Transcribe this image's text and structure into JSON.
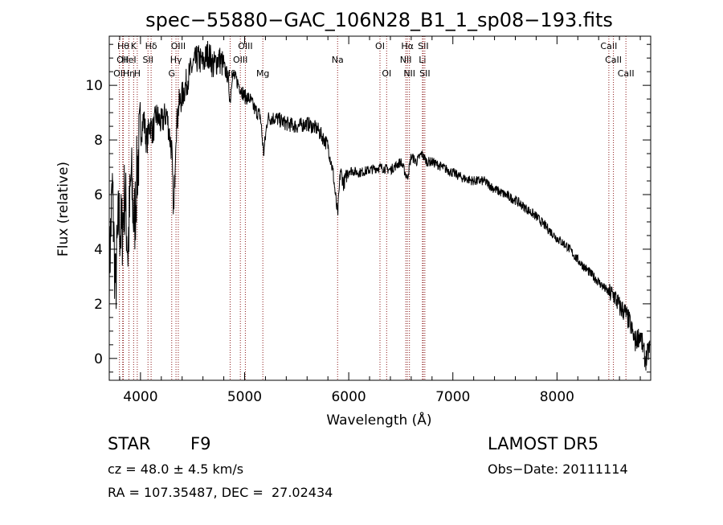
{
  "chart_data": {
    "type": "line",
    "title": "spec−55880−GAC_106N28_B1_1_sp08−193.fits",
    "xlabel": "Wavelength (Å)",
    "ylabel": "Flux (relative)",
    "xlim": [
      3700,
      8900
    ],
    "ylim": [
      -0.8,
      11.8
    ],
    "x_ticks": [
      4000,
      5000,
      6000,
      7000,
      8000
    ],
    "y_ticks": [
      0,
      2,
      4,
      6,
      8,
      10
    ],
    "grid": false,
    "series": [
      {
        "x": [
          3700,
          3730,
          3760,
          3790,
          3820,
          3850,
          3880,
          3910,
          3940,
          3970,
          4000,
          4030,
          4060,
          4090,
          4120,
          4150,
          4200,
          4250,
          4300,
          4320,
          4340,
          4370,
          4400,
          4450,
          4500,
          4550,
          4600,
          4650,
          4700,
          4750,
          4800,
          4840,
          4861,
          4880,
          4920,
          4960,
          5000,
          5050,
          5100,
          5150,
          5183,
          5220,
          5300,
          5400,
          5500,
          5600,
          5700,
          5800,
          5850,
          5893,
          5920,
          5950,
          6000,
          6100,
          6200,
          6300,
          6400,
          6500,
          6563,
          6600,
          6650,
          6700,
          6750,
          6800,
          6900,
          7000,
          7100,
          7200,
          7300,
          7400,
          7500,
          7600,
          7700,
          7800,
          7900,
          8000,
          8100,
          8200,
          8300,
          8400,
          8500,
          8550,
          8600,
          8650,
          8700,
          8750,
          8800,
          8850,
          8890
        ],
        "y": [
          3.2,
          6.2,
          2.5,
          5.1,
          4.5,
          6.1,
          3.9,
          6.7,
          4.8,
          7.0,
          8.2,
          8.8,
          7.9,
          8.6,
          8.3,
          8.9,
          8.6,
          9.0,
          7.6,
          5.2,
          8.3,
          9.3,
          9.6,
          10.2,
          10.7,
          11.0,
          10.8,
          11.2,
          10.7,
          11.0,
          10.7,
          10.3,
          9.4,
          10.4,
          10.2,
          9.9,
          9.6,
          9.5,
          9.1,
          8.9,
          7.5,
          8.8,
          8.8,
          8.6,
          8.5,
          8.6,
          8.4,
          7.8,
          6.8,
          5.2,
          6.9,
          6.4,
          6.9,
          6.8,
          6.9,
          7.0,
          6.9,
          7.2,
          6.6,
          7.4,
          7.2,
          7.5,
          7.2,
          7.2,
          7.0,
          6.8,
          6.6,
          6.5,
          6.5,
          6.2,
          6.0,
          5.8,
          5.5,
          5.2,
          4.8,
          4.4,
          4.1,
          3.6,
          3.2,
          2.8,
          2.4,
          2.3,
          1.9,
          1.7,
          1.3,
          0.6,
          0.9,
          -0.1,
          0.4
        ]
      }
    ],
    "lines": [
      {
        "wl": 3798,
        "row": 3,
        "label": "OII"
      },
      {
        "wl": 3835,
        "row": 1,
        "label": "Hθ"
      },
      {
        "wl": 3829,
        "row": 2,
        "label": "OII"
      },
      {
        "wl": 3889,
        "row": 2,
        "label": "HeI"
      },
      {
        "wl": 3889,
        "row": 3,
        "label": "Hη"
      },
      {
        "wl": 3934,
        "row": 1,
        "label": "K"
      },
      {
        "wl": 3969,
        "row": 3,
        "label": "H"
      },
      {
        "wl": 4072,
        "row": 2,
        "label": "SII"
      },
      {
        "wl": 4102,
        "row": 1,
        "label": "Hδ"
      },
      {
        "wl": 4300,
        "row": 3,
        "label": "G"
      },
      {
        "wl": 4341,
        "row": 2,
        "label": "Hγ"
      },
      {
        "wl": 4363,
        "row": 1,
        "label": "OIII"
      },
      {
        "wl": 4861,
        "row": 3,
        "label": "Hβ"
      },
      {
        "wl": 4959,
        "row": 2,
        "label": "OIII"
      },
      {
        "wl": 5007,
        "row": 1,
        "label": "OIII"
      },
      {
        "wl": 5175,
        "row": 3,
        "label": "Mg"
      },
      {
        "wl": 5893,
        "row": 2,
        "label": "Na"
      },
      {
        "wl": 6300,
        "row": 1,
        "label": "OI"
      },
      {
        "wl": 6364,
        "row": 3,
        "label": "OI"
      },
      {
        "wl": 6548,
        "row": 2,
        "label": "NII"
      },
      {
        "wl": 6563,
        "row": 1,
        "label": "Hα"
      },
      {
        "wl": 6583,
        "row": 3,
        "label": "NII"
      },
      {
        "wl": 6708,
        "row": 2,
        "label": "Li"
      },
      {
        "wl": 6716,
        "row": 1,
        "label": "SII"
      },
      {
        "wl": 6731,
        "row": 3,
        "label": "SII"
      },
      {
        "wl": 8498,
        "row": 1,
        "label": "CaII"
      },
      {
        "wl": 8542,
        "row": 2,
        "label": "CaII"
      },
      {
        "wl": 8662,
        "row": 3,
        "label": "CaII"
      }
    ],
    "line_color": "#8b1a1a",
    "spectrum_color": "#000000"
  },
  "info": {
    "class": "STAR",
    "subclass": "F9",
    "survey": "LAMOST DR5",
    "cz": "cz = 48.0 ± 4.5 km/s",
    "obs_date": "Obs−Date: 20111114",
    "coords": "RA = 107.35487, DEC =  27.02434"
  }
}
